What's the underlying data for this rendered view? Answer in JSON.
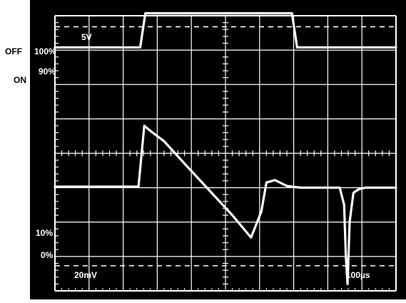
{
  "chart_data": {
    "type": "line",
    "title": "",
    "xlabel": "",
    "ylabel": "",
    "divisions": {
      "x": 10,
      "y": 8
    },
    "xlim": [
      0,
      10
    ],
    "ylim": [
      0,
      8
    ],
    "grid": true,
    "labels": {
      "off": "OFF",
      "on": "ON",
      "five_volt": "5V",
      "pct100": "100%",
      "pct90": "90%",
      "pct10": "10%",
      "pct0": "0%",
      "vscale": "20mV",
      "tscale": "100µs"
    },
    "series": [
      {
        "x": [
          0,
          2.5,
          2.65,
          6.95,
          7.1,
          10
        ],
        "y": [
          7.08,
          7.08,
          8.07,
          8.07,
          7.08,
          7.08
        ]
      },
      {
        "x": [
          0,
          2.45,
          2.62,
          2.8,
          3.2,
          3.8,
          4.5,
          5.2,
          5.75,
          6.05,
          6.2,
          6.45,
          6.8,
          7.2,
          7.6,
          8.05,
          8.35,
          8.48,
          8.53,
          8.58,
          8.64,
          8.75,
          8.9,
          9.1,
          9.5,
          10
        ],
        "y": [
          3.03,
          3.03,
          4.8,
          4.65,
          4.35,
          3.7,
          2.95,
          2.2,
          1.55,
          2.3,
          3.15,
          3.22,
          3.05,
          3.0,
          3.0,
          3.0,
          3.0,
          2.5,
          1.0,
          0.2,
          2.0,
          2.85,
          2.95,
          3.0,
          3.0,
          3.0
        ]
      }
    ],
    "threshold_lines": [
      {
        "label": "90%",
        "y": 7.68
      },
      {
        "label": "10%",
        "y": 0.73
      }
    ]
  }
}
